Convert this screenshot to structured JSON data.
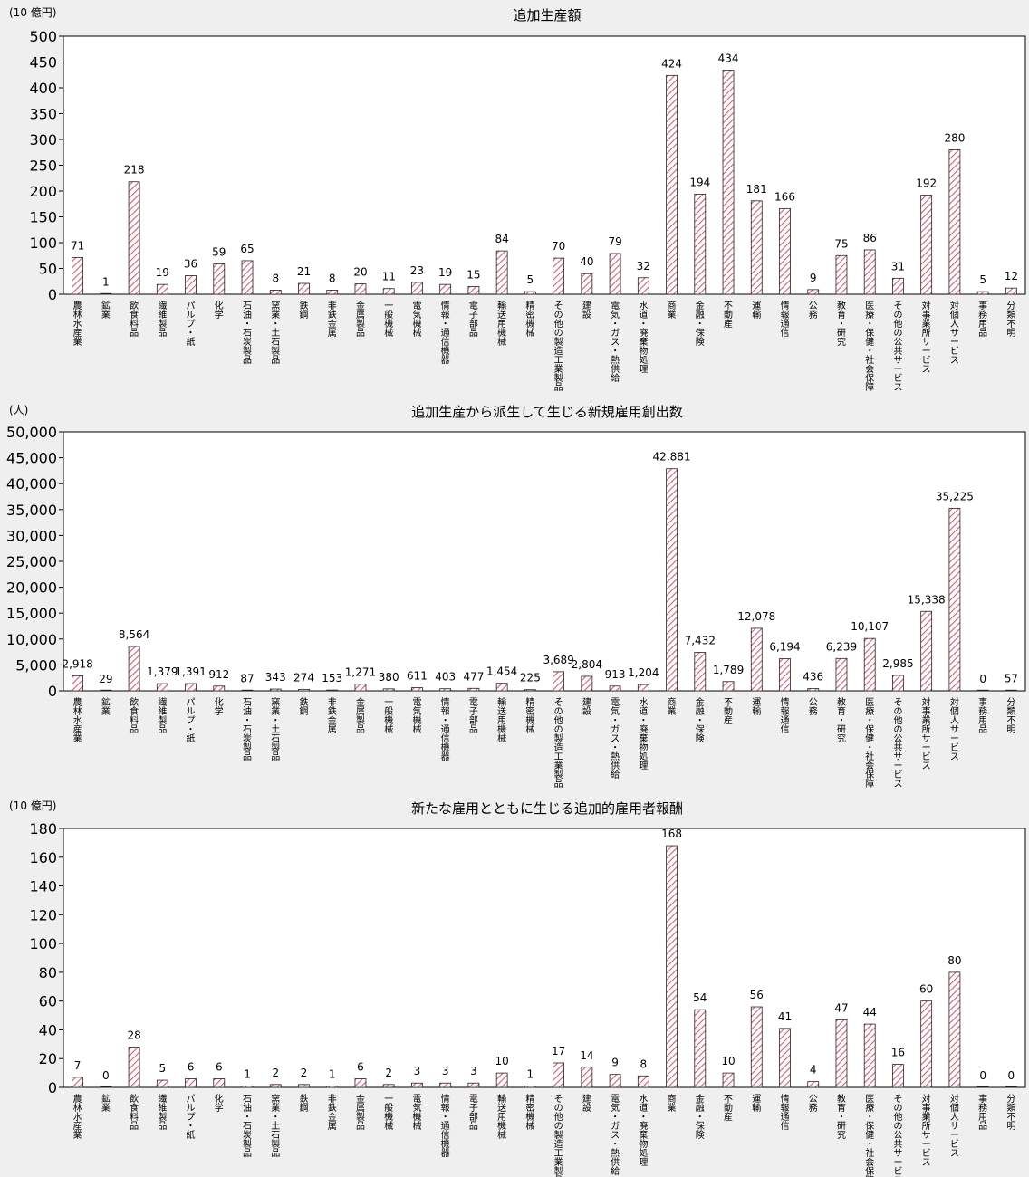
{
  "colors": {
    "background": "#efefef",
    "plot_background": "#ffffff",
    "hatch": "#e05a6a",
    "bar_outline": "#222222"
  },
  "chart_data": [
    {
      "type": "bar",
      "title": "追加生産額",
      "unit_label": "(10 億円)",
      "ylim": [
        0,
        500
      ],
      "yticks": [
        0,
        50,
        100,
        150,
        200,
        250,
        300,
        350,
        400,
        450,
        500
      ],
      "ytick_labels": [
        "0",
        "50",
        "100",
        "150",
        "200",
        "250",
        "300",
        "350",
        "400",
        "450",
        "500"
      ],
      "grid": false,
      "categories": [
        "農林水産業",
        "鉱業",
        "飲食料品",
        "繊維製品",
        "パルプ・紙",
        "化学",
        "石油・石炭製品",
        "窯業・土石製品",
        "鉄鋼",
        "非鉄金属",
        "金属製品",
        "一般機械",
        "電気機械",
        "情報・通信機器",
        "電子部品",
        "輸送用機械",
        "精密機械",
        "その他の製造工業製品",
        "建設",
        "電気・ガス・熱供給",
        "水道・廃棄物処理",
        "商業",
        "金融・保険",
        "不動産",
        "運輸",
        "情報通信",
        "公務",
        "教育・研究",
        "医療・保健・社会保障",
        "その他の公共サービス",
        "対事業所サービス",
        "対個人サービス",
        "事務用品",
        "分類不明"
      ],
      "values": [
        71,
        1,
        218,
        19,
        36,
        59,
        65,
        8,
        21,
        8,
        20,
        11,
        23,
        19,
        15,
        84,
        5,
        70,
        40,
        79,
        32,
        424,
        194,
        434,
        181,
        166,
        9,
        75,
        86,
        31,
        192,
        280,
        5,
        12
      ],
      "data_labels": [
        "71",
        "1",
        "218",
        "19",
        "36",
        "59",
        "65",
        "8",
        "21",
        "8",
        "20",
        "11",
        "23",
        "19",
        "15",
        "84",
        "5",
        "70",
        "40",
        "79",
        "32",
        "424",
        "194",
        "434",
        "181",
        "166",
        "9",
        "75",
        "86",
        "31",
        "192",
        "280",
        "5",
        "12"
      ]
    },
    {
      "type": "bar",
      "title": "追加生産から派生して生じる新規雇用創出数",
      "unit_label": "(人)",
      "ylim": [
        0,
        50000
      ],
      "yticks": [
        0,
        5000,
        10000,
        15000,
        20000,
        25000,
        30000,
        35000,
        40000,
        45000,
        50000
      ],
      "ytick_labels": [
        "0",
        "5,000",
        "10,000",
        "15,000",
        "20,000",
        "25,000",
        "30,000",
        "35,000",
        "40,000",
        "45,000",
        "50,000"
      ],
      "grid": false,
      "categories": [
        "農林水産業",
        "鉱業",
        "飲食料品",
        "繊維製品",
        "パルプ・紙",
        "化学",
        "石油・石炭製品",
        "窯業・土石製品",
        "鉄鋼",
        "非鉄金属",
        "金属製品",
        "一般機械",
        "電気機械",
        "情報・通信機器",
        "電子部品",
        "輸送用機械",
        "精密機械",
        "その他の製造工業製品",
        "建設",
        "電気・ガス・熱供給",
        "水道・廃棄物処理",
        "商業",
        "金融・保険",
        "不動産",
        "運輸",
        "情報通信",
        "公務",
        "教育・研究",
        "医療・保健・社会保障",
        "その他の公共サービス",
        "対事業所サービス",
        "対個人サービス",
        "事務用品",
        "分類不明"
      ],
      "values": [
        2918,
        29,
        8564,
        1379,
        1391,
        912,
        87,
        343,
        274,
        153,
        1271,
        380,
        611,
        403,
        477,
        1454,
        225,
        3689,
        2804,
        913,
        1204,
        42881,
        7432,
        1789,
        12078,
        6194,
        436,
        6239,
        10107,
        2985,
        15338,
        35225,
        0,
        57
      ],
      "data_labels": [
        "2,918",
        "29",
        "8,564",
        "1,379",
        "1,391",
        "912",
        "87",
        "343",
        "274",
        "153",
        "1,271",
        "380",
        "611",
        "403",
        "477",
        "1,454",
        "225",
        "3,689",
        "2,804",
        "913",
        "1,204",
        "42,881",
        "7,432",
        "1,789",
        "12,078",
        "6,194",
        "436",
        "6,239",
        "10,107",
        "2,985",
        "15,338",
        "35,225",
        "0",
        "57"
      ]
    },
    {
      "type": "bar",
      "title": "新たな雇用とともに生じる追加的雇用者報酬",
      "unit_label": "(10 億円)",
      "ylim": [
        0,
        180
      ],
      "yticks": [
        0,
        20,
        40,
        60,
        80,
        100,
        120,
        140,
        160,
        180
      ],
      "ytick_labels": [
        "0",
        "20",
        "40",
        "60",
        "80",
        "100",
        "120",
        "140",
        "160",
        "180"
      ],
      "grid": false,
      "categories": [
        "農林水産業",
        "鉱業",
        "飲食料品",
        "繊維製品",
        "パルプ・紙",
        "化学",
        "石油・石炭製品",
        "窯業・土石製品",
        "鉄鋼",
        "非鉄金属",
        "金属製品",
        "一般機械",
        "電気機械",
        "情報・通信機器",
        "電子部品",
        "輸送用機械",
        "精密機械",
        "その他の製造工業製品",
        "建設",
        "電気・ガス・熱供給",
        "水道・廃棄物処理",
        "商業",
        "金融・保険",
        "不動産",
        "運輸",
        "情報通信",
        "公務",
        "教育・研究",
        "医療・保健・社会保障",
        "その他の公共サービス",
        "対事業所サービス",
        "対個人サービス",
        "事務用品",
        "分類不明"
      ],
      "values": [
        7,
        0,
        28,
        5,
        6,
        6,
        1,
        2,
        2,
        1,
        6,
        2,
        3,
        3,
        3,
        10,
        1,
        17,
        14,
        9,
        8,
        168,
        54,
        10,
        56,
        41,
        4,
        47,
        44,
        16,
        60,
        80,
        0,
        0
      ],
      "data_labels": [
        "7",
        "0",
        "28",
        "5",
        "6",
        "6",
        "1",
        "2",
        "2",
        "1",
        "6",
        "2",
        "3",
        "3",
        "3",
        "10",
        "1",
        "17",
        "14",
        "9",
        "8",
        "168",
        "54",
        "10",
        "56",
        "41",
        "4",
        "47",
        "44",
        "16",
        "60",
        "80",
        "0",
        "0"
      ]
    }
  ]
}
